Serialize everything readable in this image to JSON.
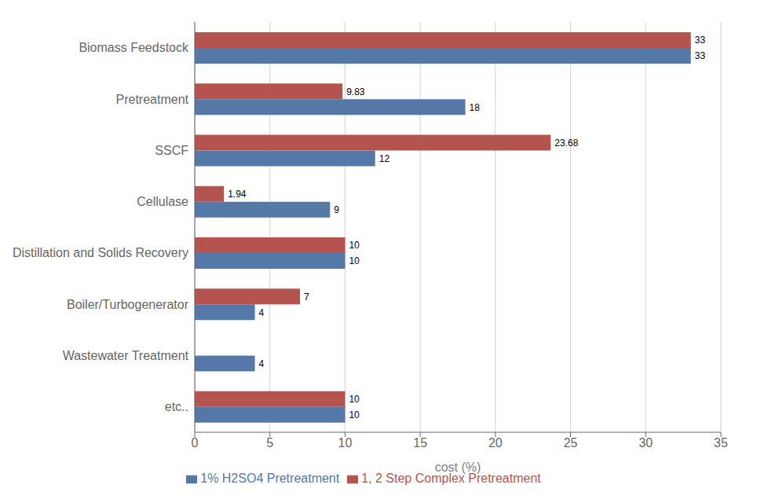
{
  "chart_data": {
    "type": "bar",
    "orientation": "horizontal",
    "categories": [
      "etc..",
      "Wastewater Treatment",
      "Boiler/Turbogenerator",
      "Distillation and Solids Recovery",
      "Cellulase",
      "SSCF",
      "Pretreatment",
      "Biomass Feedstock"
    ],
    "series": [
      {
        "name": "1, 2 Step Complex Pretreatment",
        "color": "#b5534e",
        "values": [
          10,
          0,
          7,
          10,
          1.94,
          23.68,
          9.83,
          33
        ]
      },
      {
        "name": "1% H2SO4 Pretreatment",
        "color": "#5478a8",
        "values": [
          10,
          4,
          4,
          10,
          9,
          12,
          18,
          33
        ]
      }
    ],
    "xlabel": "cost (%)",
    "xlim": [
      0,
      35
    ],
    "xticks": [
      0,
      5,
      10,
      15,
      20,
      25,
      30,
      35
    ],
    "grid": true,
    "legend": "bottom",
    "data_labels": true
  }
}
